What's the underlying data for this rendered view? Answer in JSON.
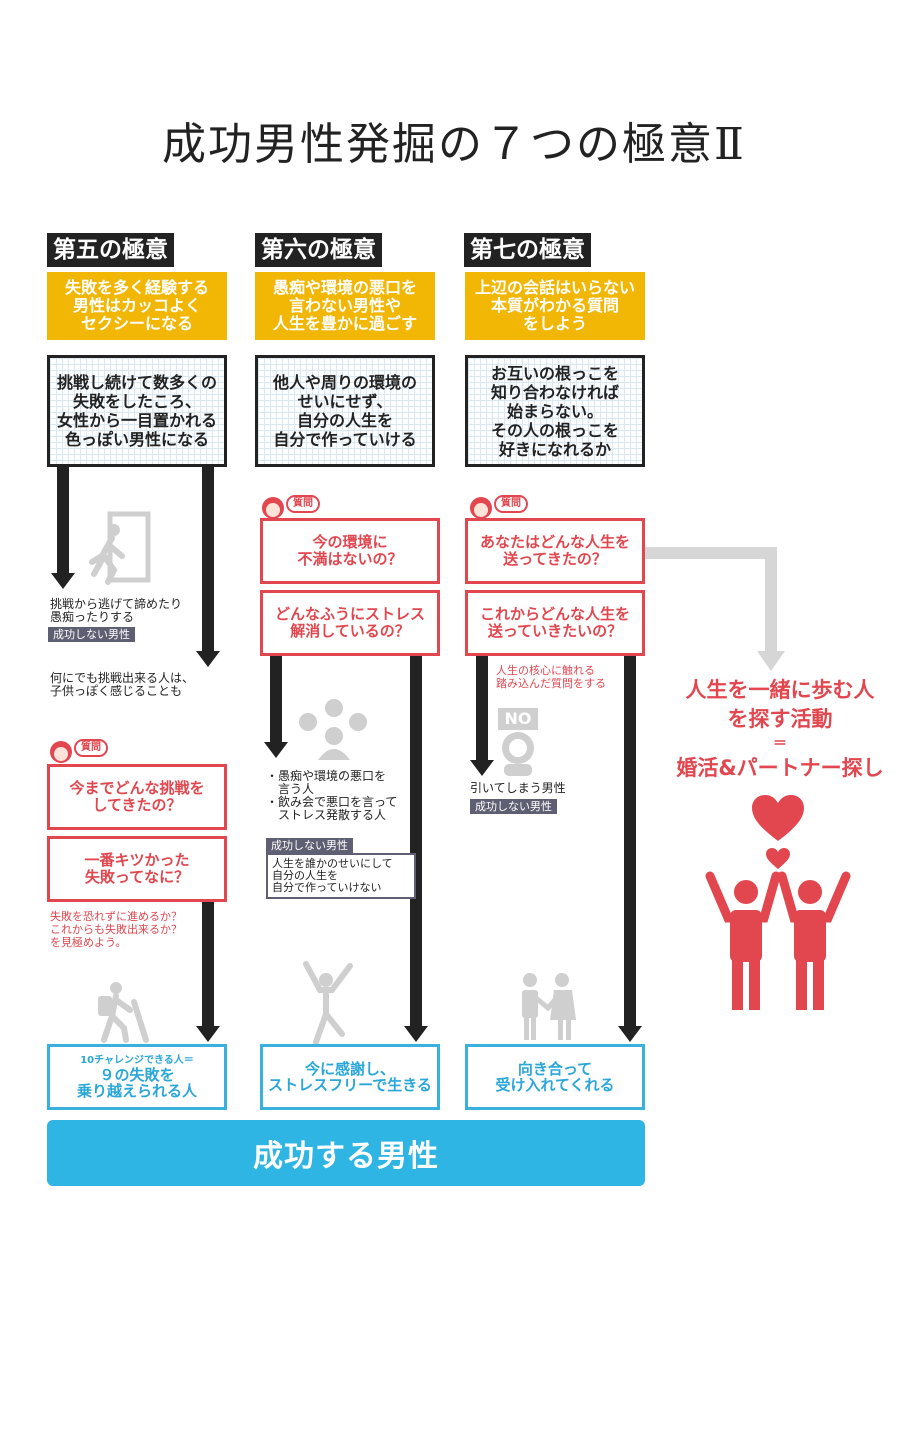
{
  "title": "成功男性発掘の７つの極意Ⅱ",
  "columns": [
    {
      "heading": "第五の極意",
      "theme": "失敗を多く経験する\n男性はカッコよく\nセクシーになる",
      "summary": "挑戦し続けて数多くの\n失敗をしたころ、\n女性から一目置かれる\n色っぽい男性になる",
      "fail_note": "挑戦から逃げて諦めたり\n愚痴ったりする",
      "fail_tag": "成功しない男性",
      "side_note": "何にでも挑戦出来る人は、\n子供っぽく感じることも",
      "question_badge": "質問",
      "q1": "今までどんな挑戦を\nしてきたの？",
      "q2": "一番キツかった\n失敗ってなに？",
      "q_note": "失敗を恐れずに進めるか？\nこれからも失敗出来るか？\nを見極めよう。",
      "result_small": "10チャレンジできる人＝",
      "result": "９の失敗を\n乗り越えられる人"
    },
    {
      "heading": "第六の極意",
      "theme": "愚痴や環境の悪口を\n言わない男性や\n人生を豊かに過ごす",
      "summary": "他人や周りの環境の\nせいにせず、\n自分の人生を\n自分で作っていける",
      "question_badge": "質問",
      "q1": "今の環境に\n不満はないの？",
      "q2": "どんなふうにストレス\n解消しているの？",
      "fail_list": "・愚痴や環境の悪口を\n　言う人\n・飲み会で悪口を言って\n　ストレス発散する人",
      "fail_tag": "成功しない男性",
      "fail_box": "人生を誰かのせいにして\n自分の人生を\n自分で作っていけない",
      "result": "今に感謝し、\nストレスフリーで生きる"
    },
    {
      "heading": "第七の極意",
      "theme": "上辺の会話はいらない\n本質がわかる質問\nをしよう",
      "summary": "お互いの根っこを\n知り合わなければ\n始まらない。\nその人の根っこを\n好きになれるか",
      "question_badge": "質問",
      "q1": "あなたはどんな人生を\n送ってきたの？",
      "q2": "これからどんな人生を\n送っていきたいの？",
      "q_note": "人生の核心に触れる\n踏み込んだ質問をする",
      "no_label": "NO",
      "fail_note": "引いてしまう男性",
      "fail_tag": "成功しない男性",
      "result": "向き合って\n受け入れてくれる"
    }
  ],
  "side_goal": {
    "line1": "人生を一緒に歩む人",
    "line2": "を探す活動",
    "equals": "＝",
    "line3": "婚活&パートナー探し"
  },
  "bottom_banner": "成功する男性",
  "colors": {
    "yellow": "#f2b705",
    "red": "#e2474f",
    "blue": "#2eb5e3",
    "dark": "#222222",
    "gray": "#d6d6d6"
  },
  "icons": [
    "exit-runner-icon",
    "faces-icon",
    "no-sign-icon",
    "hiker-icon",
    "jumping-person-icon",
    "handshake-icon",
    "heart-icon",
    "couple-icon",
    "woman-avatar-icon"
  ]
}
